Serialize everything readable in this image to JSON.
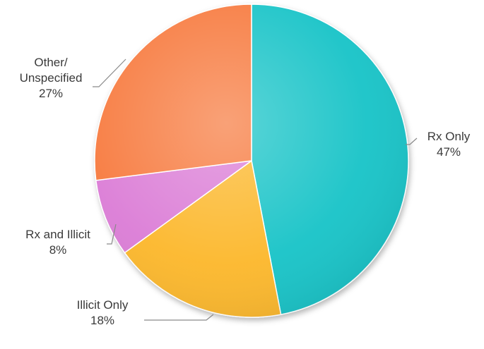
{
  "chart_data": {
    "type": "pie",
    "title": "",
    "start_angle_deg": 0,
    "direction": "clockwise",
    "legend": "none",
    "slices": [
      {
        "label_lines": [
          "Rx Only"
        ],
        "pct_text": "47%",
        "value": 47,
        "color": "#12c3c7"
      },
      {
        "label_lines": [
          "Illicit Only"
        ],
        "pct_text": "18%",
        "value": 18,
        "color": "#fcb72a"
      },
      {
        "label_lines": [
          "Rx and Illicit"
        ],
        "pct_text": "8%",
        "value": 8,
        "color": "#db7bd6"
      },
      {
        "label_lines": [
          "Other/",
          "Unspecified"
        ],
        "pct_text": "27%",
        "value": 27,
        "color": "#f7793c"
      }
    ]
  }
}
